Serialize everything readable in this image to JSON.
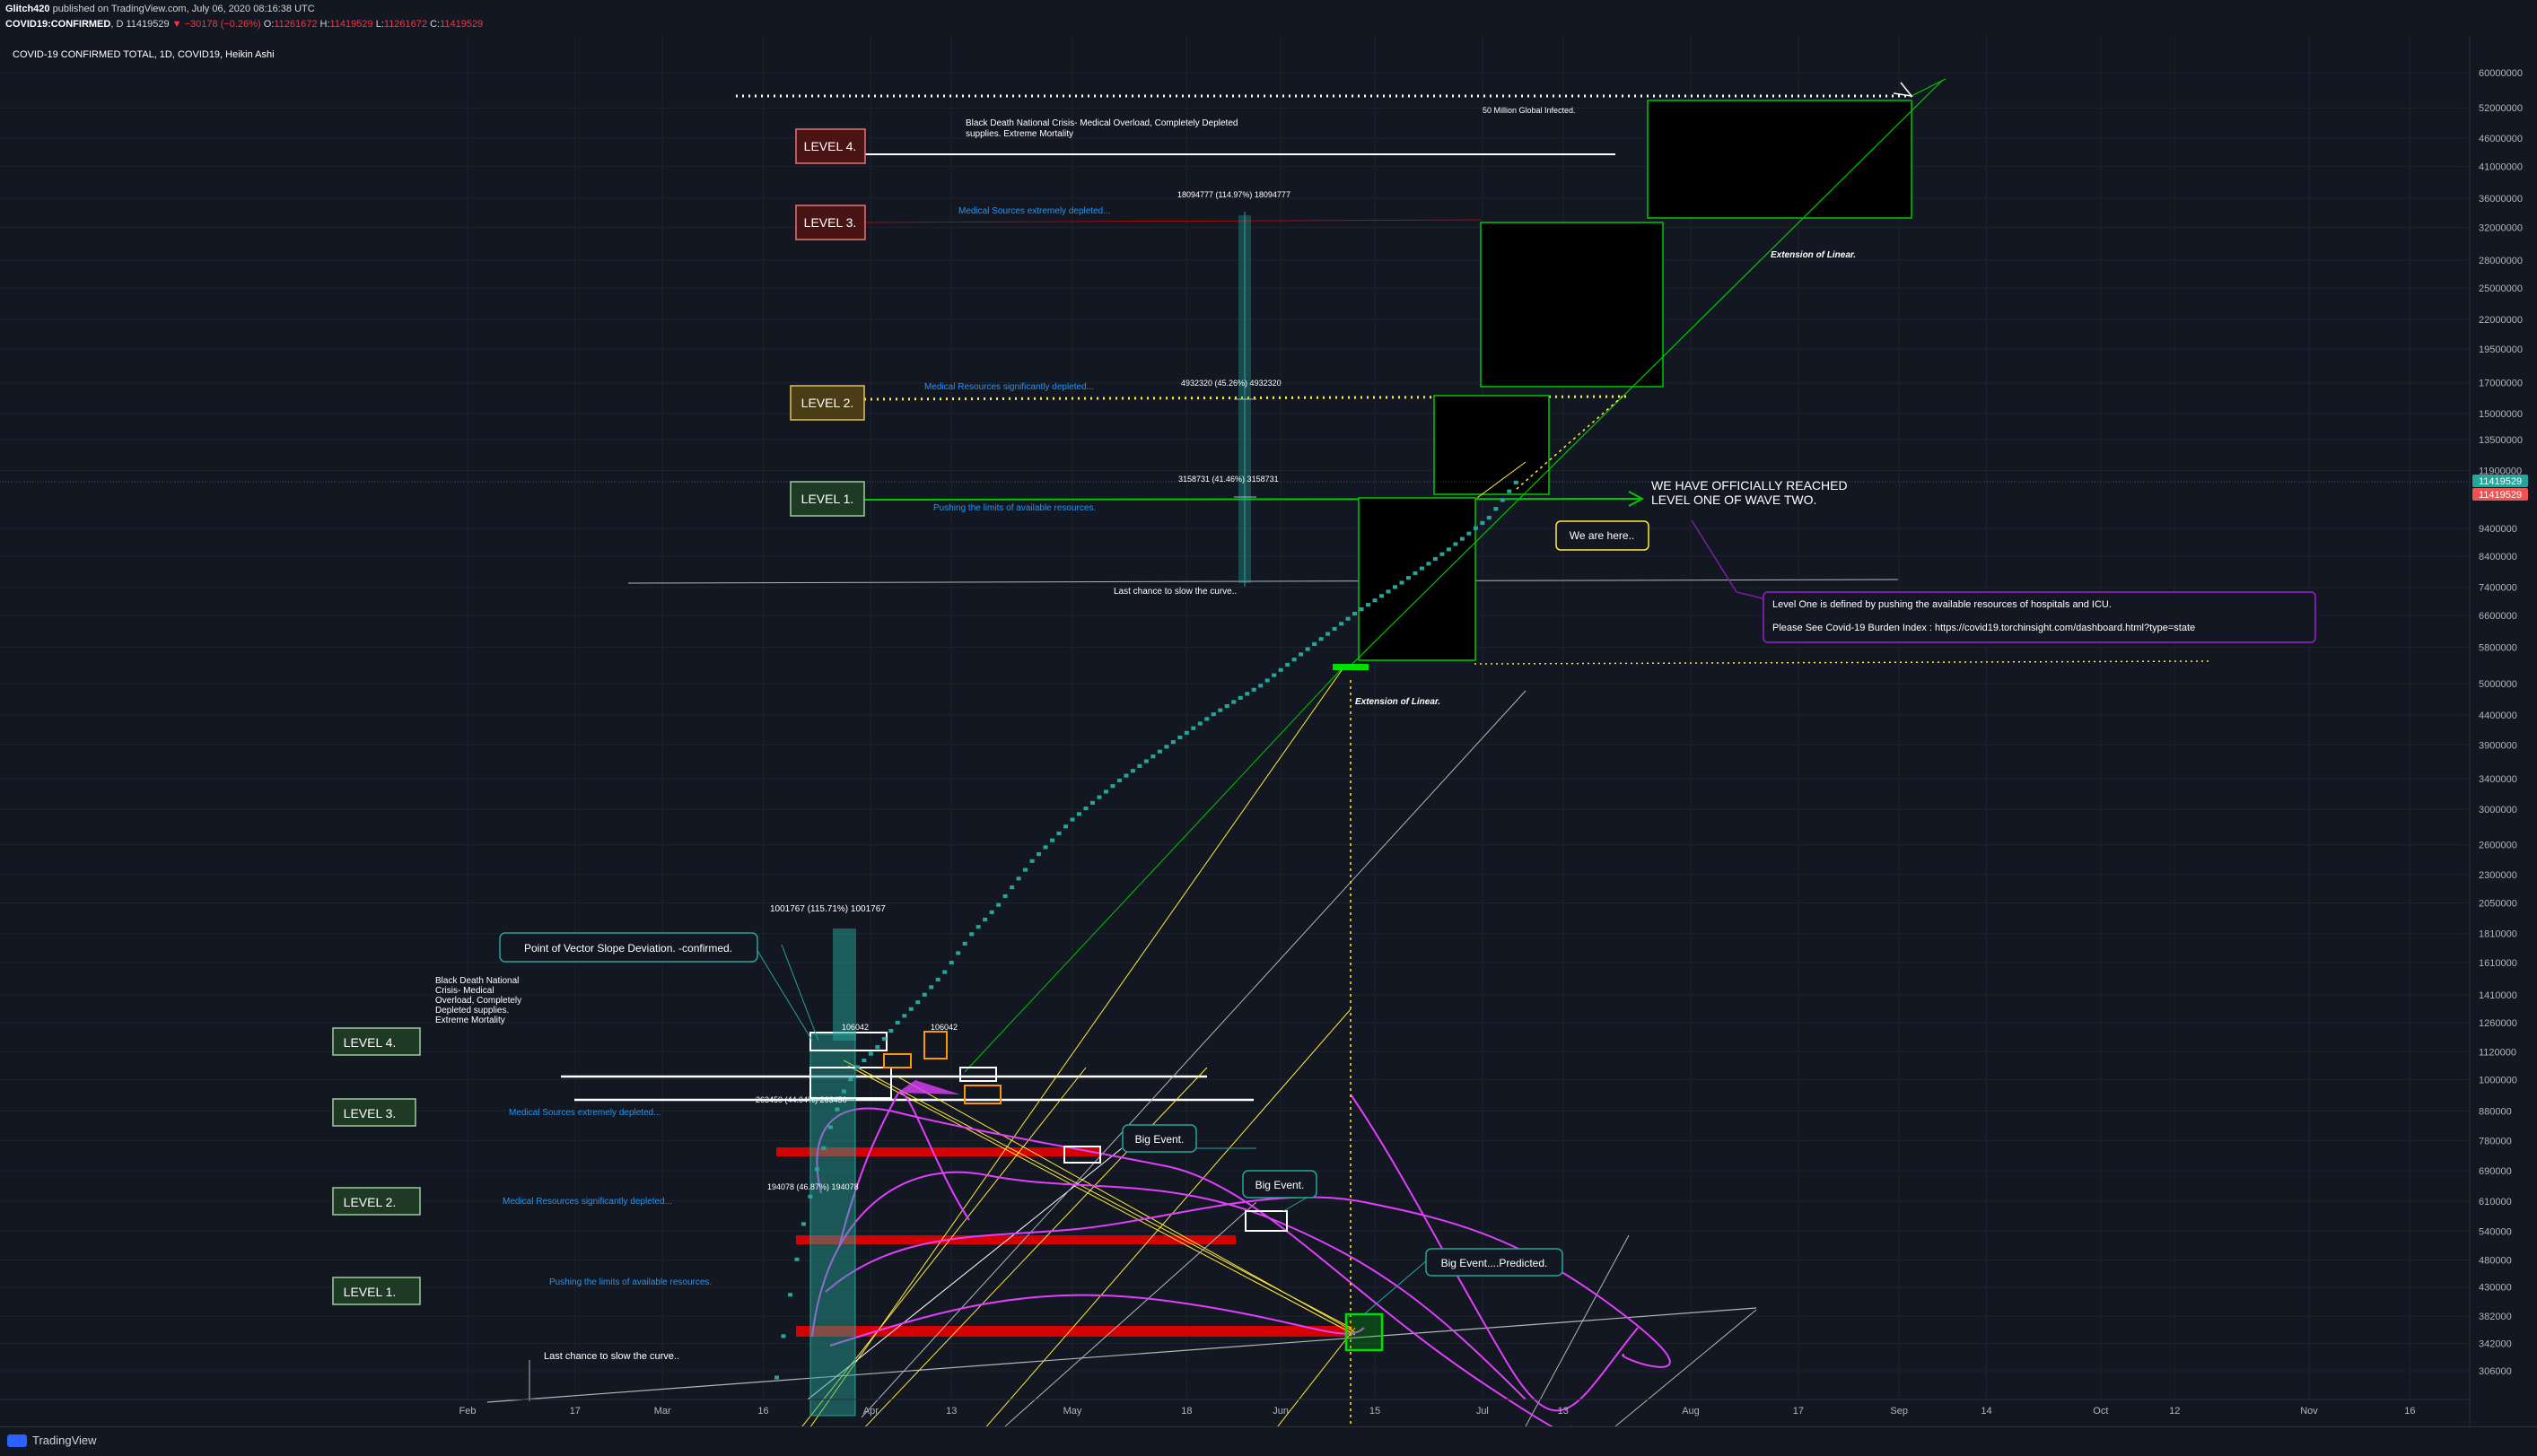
{
  "header": {
    "author": "Glitch420",
    "published": "published on TradingView.com, July 06, 2020 08:16:38 UTC",
    "symbol": "COVID19:CONFIRMED",
    "interval": "D",
    "price": "11419529",
    "change": "−30178 (−0.26%)",
    "o_label": "O:",
    "o": "11261672",
    "h_label": "H:",
    "h": "11419529",
    "l_label": "L:",
    "l": "11261672",
    "c_label": "C:",
    "c": "11419529"
  },
  "legend_title": "COVID-19 CONFIRMED TOTAL, 1D, COVID19, Heikin Ashi",
  "footer": {
    "brand": "TradingView"
  },
  "colors": {
    "background": "#131722",
    "grid": "#1e222d",
    "candle": "#26a69a",
    "level_line": "#ffffff",
    "green_box": "#00c800",
    "yellow": "#ffeb3b",
    "magenta": "#e040fb",
    "red_band": "#d50000",
    "orange": "#ff9800",
    "blue_text": "#2196f3",
    "purple_box": "#7b1fa2",
    "price_tag_green": "#26a69a",
    "price_tag_red": "#ef5350"
  },
  "chart_data": {
    "type": "candlestick",
    "style": "Heikin Ashi",
    "y_scale": "log",
    "grid": true,
    "x_tick_labels": [
      "Feb",
      "17",
      "Mar",
      "16",
      "Apr",
      "13",
      "May",
      "18",
      "Jun",
      "15",
      "Jul",
      "13",
      "Aug",
      "17",
      "Sep",
      "14",
      "Oct",
      "12",
      "Nov",
      "16"
    ],
    "x_tick_dates": [
      "2020-02-01",
      "2020-02-17",
      "2020-03-01",
      "2020-03-16",
      "2020-04-01",
      "2020-04-13",
      "2020-05-01",
      "2020-05-18",
      "2020-06-01",
      "2020-06-15",
      "2020-07-01",
      "2020-07-13",
      "2020-08-01",
      "2020-08-17",
      "2020-09-01",
      "2020-09-14",
      "2020-10-01",
      "2020-10-12",
      "2020-11-01",
      "2020-11-16"
    ],
    "y_tick_labels": [
      "60000000",
      "52000000",
      "46000000",
      "41000000",
      "36000000",
      "32000000",
      "28000000",
      "25000000",
      "22000000",
      "19500000",
      "17000000",
      "15000000",
      "13500000",
      "11900000",
      "9400000",
      "8400000",
      "7400000",
      "6600000",
      "5800000",
      "5000000",
      "4400000",
      "3900000",
      "3400000",
      "3000000",
      "2600000",
      "2300000",
      "2050000",
      "1810000",
      "1610000",
      "1410000",
      "1260000",
      "1120000",
      "1000000",
      "880000",
      "780000",
      "690000",
      "610000",
      "540000",
      "480000",
      "430000",
      "382000",
      "342000",
      "306000"
    ],
    "price_tags": [
      {
        "label": "11419529",
        "color": "#26a69a"
      },
      {
        "label": "11419529",
        "color": "#ef5350"
      }
    ],
    "series": [
      {
        "name": "COVID-19 CONFIRMED TOTAL",
        "points": [
          [
            "2020-03-18",
            300000
          ],
          [
            "2020-03-20",
            420000
          ],
          [
            "2020-03-22",
            560000
          ],
          [
            "2020-03-24",
            700000
          ],
          [
            "2020-03-26",
            830000
          ],
          [
            "2020-03-28",
            960000
          ],
          [
            "2020-03-30",
            1060000
          ],
          [
            "2020-04-02",
            1150000
          ],
          [
            "2020-04-05",
            1270000
          ],
          [
            "2020-04-08",
            1380000
          ],
          [
            "2020-04-12",
            1560000
          ],
          [
            "2020-04-16",
            1820000
          ],
          [
            "2020-04-20",
            2050000
          ],
          [
            "2020-04-25",
            2450000
          ],
          [
            "2020-05-01",
            2900000
          ],
          [
            "2020-05-08",
            3400000
          ],
          [
            "2020-05-15",
            3900000
          ],
          [
            "2020-05-22",
            4450000
          ],
          [
            "2020-05-29",
            5000000
          ],
          [
            "2020-06-05",
            5800000
          ],
          [
            "2020-06-12",
            6700000
          ],
          [
            "2020-06-19",
            7600000
          ],
          [
            "2020-06-26",
            8700000
          ],
          [
            "2020-07-02",
            9900000
          ],
          [
            "2020-07-06",
            11419529
          ]
        ]
      }
    ],
    "annotations": {
      "big_event_1": "Big Event.",
      "big_event_2": "Big Event.",
      "big_event_predicted": "Big Event....Predicted.",
      "vector_callout": "Point of Vector Slope Deviation. -confirmed.",
      "we_are_here": "We are here..",
      "wave_two": [
        "WE HAVE OFFICIALLY REACHED",
        "LEVEL ONE OF WAVE TWO."
      ],
      "level_one_def": "Level One is defined by pushing the available resources of hospitals and ICU.",
      "burden_index": "Please See Covid-19 Burden Index : https://covid19.torchinsight.com/dashboard.html?type=state",
      "extension_upper": "Extension of Linear.",
      "extension_lower": "Extension of Linear.",
      "fifty_million": "50 Million Global Infected.",
      "black_death_upper": [
        "Black Death National Crisis- Medical Overload, Completely Depleted",
        "supplies. Extreme Mortality"
      ],
      "black_death_lower": [
        "Black Death National",
        "Crisis- Medical",
        "Overload, Completely",
        "Depleted supplies.",
        "Extreme Mortality"
      ],
      "medical_extreme_upper": "Medical Sources extremely depleted...",
      "medical_significant_upper": "Medical Resources significantly depleted...",
      "pushing_upper": "Pushing the limits of available resources.",
      "last_chance_upper": "Last chance to slow the curve..",
      "medical_extreme_lower": "Medical Sources extremely depleted...",
      "medical_significant_lower": "Medical Resources significantly depleted...",
      "pushing_lower": "Pushing the limits of available resources.",
      "last_chance_lower": "Last chance to slow the curve..",
      "measure_1": "18094777 (114.97%) 18094777",
      "measure_2": "4932320 (45.26%) 4932320",
      "measure_3": "3158731 (41.46%) 3158731",
      "measure_4": "1001767 (115.71%) 1001767",
      "measure_5": "106042",
      "measure_5b": "106042",
      "measure_6": "263450 (44.04%) 263450",
      "measure_7": "194078 (46.87%) 194078"
    },
    "levels_upper": [
      "LEVEL 4.",
      "LEVEL 3.",
      "LEVEL 2.",
      "LEVEL 1."
    ],
    "levels_lower": [
      "LEVEL 4.",
      "LEVEL 3.",
      "LEVEL 2.",
      "LEVEL 1."
    ]
  }
}
